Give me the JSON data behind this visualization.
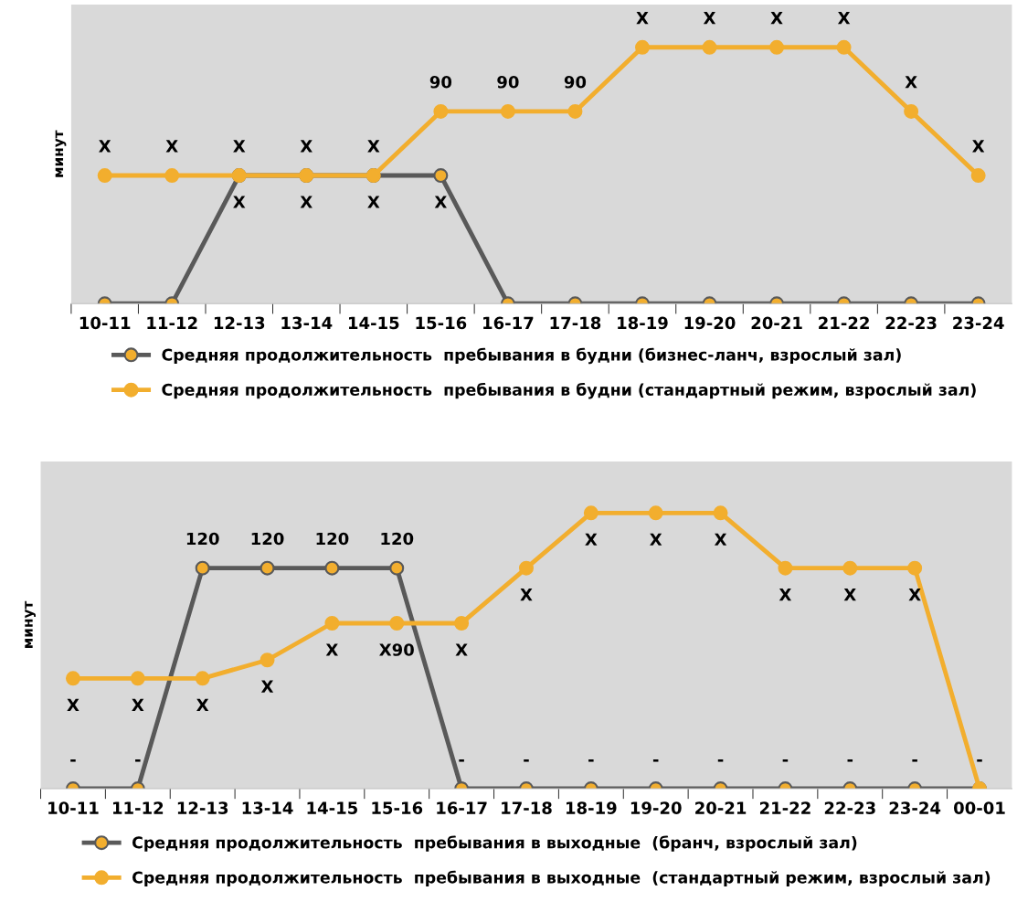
{
  "chart_data": [
    {
      "type": "line",
      "ylabel": "минут",
      "categories": [
        "10-11",
        "11-12",
        "12-13",
        "13-14",
        "14-15",
        "15-16",
        "16-17",
        "17-18",
        "18-19",
        "19-20",
        "20-21",
        "21-22",
        "22-23",
        "23-24"
      ],
      "ylim": [
        0,
        140
      ],
      "tick_labels": "x",
      "legend": "bottom",
      "marker": "circle",
      "grid": false,
      "series": [
        {
          "name": "Средняя продолжительность  пребывания в будни (бизнес-ланч, взрослый зал)",
          "color": "#595959",
          "values": [
            0,
            0,
            60,
            60,
            60,
            60,
            0,
            0,
            0,
            0,
            0,
            0,
            0,
            0
          ],
          "value_labels": [
            null,
            null,
            "X",
            "X",
            "X",
            "X",
            null,
            null,
            null,
            null,
            null,
            null,
            null,
            null
          ]
        },
        {
          "name": "Средняя продолжительность  пребывания в будни (стандартный режим, взрослый зал)",
          "color": "#f2ae2e",
          "values": [
            60,
            60,
            60,
            60,
            60,
            90,
            90,
            90,
            120,
            120,
            120,
            120,
            90,
            60
          ],
          "value_labels": [
            "X",
            "X",
            "X",
            "X",
            "X",
            "90",
            "90",
            "90",
            "X",
            "X",
            "X",
            "X",
            "X",
            "X"
          ]
        }
      ]
    },
    {
      "type": "line",
      "ylabel": "минут",
      "categories": [
        "10-11",
        "11-12",
        "12-13",
        "13-14",
        "14-15",
        "15-16",
        "16-17",
        "17-18",
        "18-19",
        "19-20",
        "20-21",
        "21-22",
        "22-23",
        "23-24",
        "00-01"
      ],
      "ylim": [
        0,
        178
      ],
      "tick_labels": "x",
      "legend": "bottom",
      "marker": "circle",
      "grid": false,
      "series": [
        {
          "name": "Средняя продолжительность  пребывания в выходные  (бранч, взрослый зал)",
          "color": "#595959",
          "values": [
            0,
            0,
            120,
            120,
            120,
            120,
            0,
            0,
            0,
            0,
            0,
            0,
            0,
            0,
            0
          ],
          "value_labels": [
            "-",
            "-",
            "120",
            "120",
            "120",
            "120",
            "-",
            "-",
            "-",
            "-",
            "-",
            "-",
            "-",
            "-",
            "-"
          ]
        },
        {
          "name": "Средняя продолжительность  пребывания в выходные  (стандартный режим, взрослый зал)",
          "color": "#f2ae2e",
          "values": [
            60,
            60,
            60,
            70,
            90,
            90,
            90,
            120,
            150,
            150,
            150,
            120,
            120,
            120,
            0
          ],
          "value_labels": [
            "X",
            "X",
            "X",
            "X",
            "X",
            "X90",
            "X",
            "X",
            "X",
            "X",
            "X",
            "X",
            "X",
            "X",
            null
          ]
        }
      ]
    }
  ]
}
